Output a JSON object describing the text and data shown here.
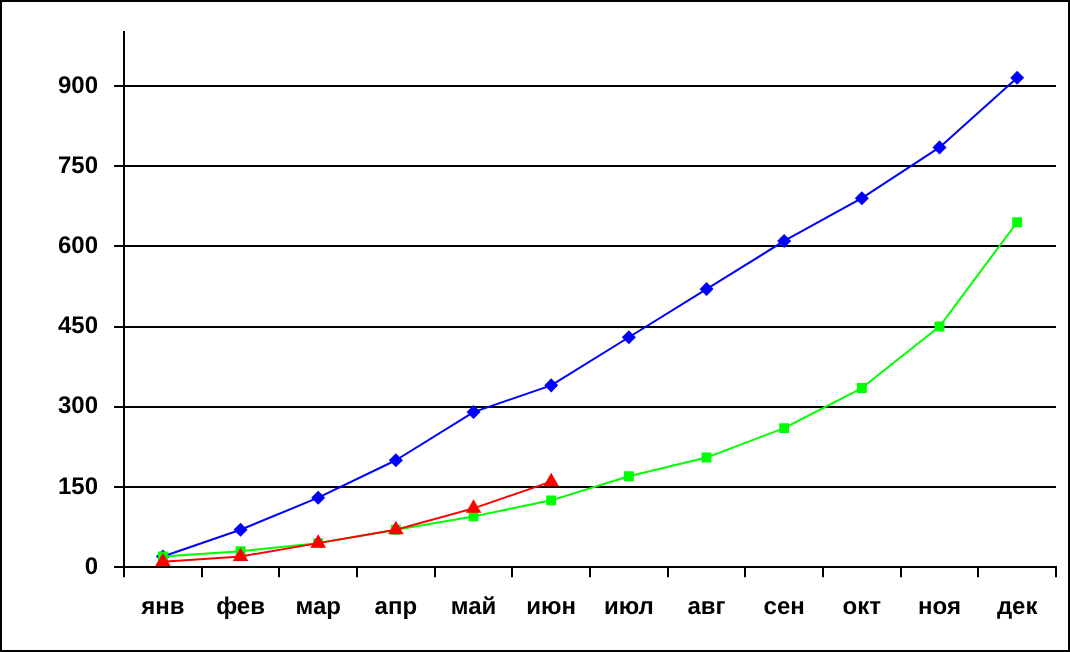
{
  "chart_data": {
    "type": "line",
    "categories": [
      "янв",
      "фев",
      "мар",
      "апр",
      "май",
      "июн",
      "июл",
      "авг",
      "сен",
      "окт",
      "ноя",
      "дек"
    ],
    "series": [
      {
        "color": "#0000ff",
        "marker": "diamond",
        "values": [
          20,
          70,
          130,
          200,
          290,
          340,
          430,
          520,
          610,
          690,
          785,
          915
        ]
      },
      {
        "color": "#00ff00",
        "marker": "square",
        "values": [
          20,
          30,
          45,
          70,
          95,
          125,
          170,
          205,
          260,
          335,
          450,
          645
        ]
      },
      {
        "color": "#ff0000",
        "marker": "triangle",
        "values": [
          10,
          20,
          45,
          70,
          110,
          160,
          null,
          null,
          null,
          null,
          null,
          null
        ]
      }
    ],
    "ylim": [
      0,
      1000
    ],
    "yticks": [
      0,
      150,
      300,
      450,
      600,
      750,
      900
    ],
    "grid": "y",
    "legend": false,
    "line_style": "solid"
  }
}
